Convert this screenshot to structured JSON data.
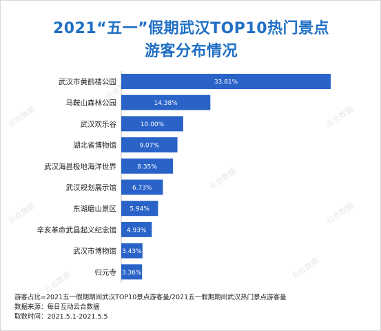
{
  "title_line1": "2021“五一”假期武汉TOP10热门景点",
  "title_line2": "游客分布情况",
  "watermark_text": "云合数据",
  "footer": {
    "line1": "游客占比=2021五一假期期间武汉TOP10景点游客量/2021五一假期期间武汉热门景点游客量",
    "line2_label": "数据来源：",
    "line2_value": "每日互动云合数据",
    "line3_label": "取数时间：",
    "line3_value": "2021.5.1-2021.5.5"
  },
  "colors": {
    "title": "#1f6fc4",
    "bar": "#2a63c8",
    "bar_label": "#ffffff"
  },
  "chart_data": {
    "type": "bar",
    "orientation": "horizontal",
    "categories": [
      "武汉市黄鹤楼公园",
      "马鞍山森林公园",
      "武汉欢乐谷",
      "湖北省博物馆",
      "武汉海昌极地海洋世界",
      "武汉规划展示馆",
      "东湖磨山景区",
      "辛亥革命武昌起义纪念馆",
      "武汉市博物馆",
      "归元寺"
    ],
    "values": [
      33.81,
      14.38,
      10.0,
      9.07,
      8.35,
      6.73,
      5.94,
      4.93,
      3.43,
      3.36
    ],
    "value_labels": [
      "33.81%",
      "14.38%",
      "10.00%",
      "9.07%",
      "8.35%",
      "6.73%",
      "5.94%",
      "4.93%",
      "3.43%",
      "3.36%"
    ],
    "unit": "%",
    "xlim": [
      0,
      33.81
    ]
  }
}
